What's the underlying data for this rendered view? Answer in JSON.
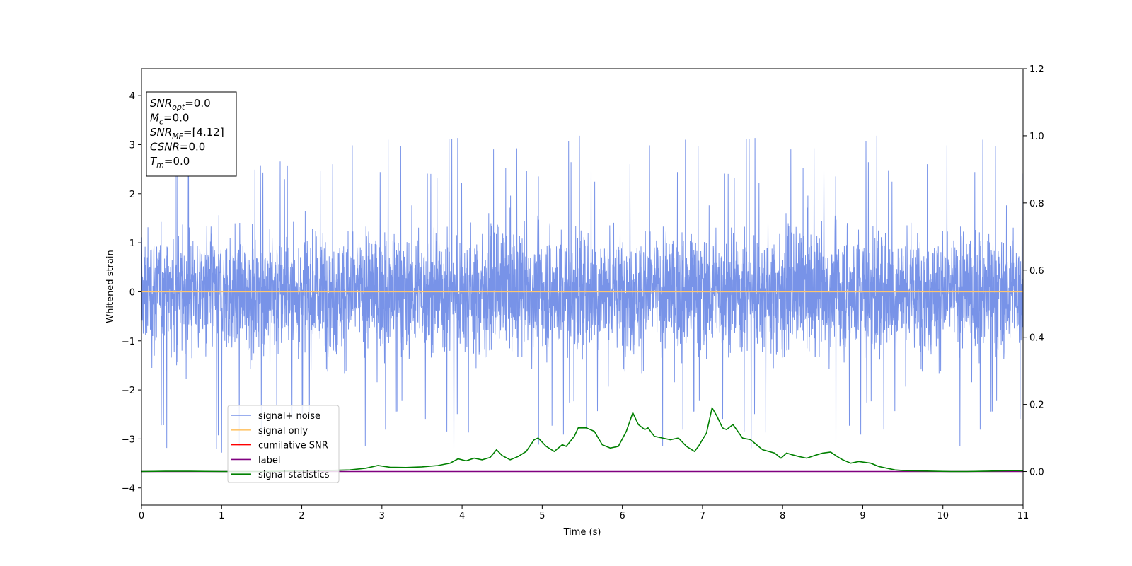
{
  "chart_data": {
    "type": "line",
    "xlabel": "Time (s)",
    "ylabel": "Whitened strain",
    "xlim": [
      0,
      11
    ],
    "ylim": [
      -4.35,
      4.55
    ],
    "y2lim": [
      -0.1,
      1.2
    ],
    "x_ticks": [
      0,
      1,
      2,
      3,
      4,
      5,
      6,
      7,
      8,
      9,
      10,
      11
    ],
    "y_ticks": [
      -4,
      -3,
      -2,
      -1,
      0,
      1,
      2,
      3,
      4
    ],
    "y2_ticks": [
      "0.0",
      "0.2",
      "0.4",
      "0.6",
      "0.8",
      "1.0",
      "1.2"
    ],
    "grid": false,
    "legend_position": "lower-left",
    "info_box": {
      "lines": [
        {
          "var": "SNR",
          "sub": "opt",
          "value": "=0.0"
        },
        {
          "var": "M",
          "sub": "c",
          "value": "=0.0"
        },
        {
          "var": "SNR",
          "sub": "MF",
          "value": "=[4.12]"
        },
        {
          "var": "CSNR",
          "sub": "",
          "value": "=0.0"
        },
        {
          "var": "T",
          "sub": "m",
          "value": "=0.0"
        }
      ]
    },
    "series": [
      {
        "name": "signal+ noise",
        "color": "#7893e8",
        "axis": "left",
        "kind": "noise",
        "description_values": {
          "t_start": 0,
          "t_end": 11,
          "typical_envelope": [
            -2.2,
            2.2
          ],
          "max_peak": 3.45,
          "min_trough": -3.95
        }
      },
      {
        "name": "signal only",
        "color": "#ffc66e",
        "axis": "left",
        "x": [
          0,
          11
        ],
        "y": [
          0,
          0
        ]
      },
      {
        "name": "cumilative SNR",
        "color": "#ff0000",
        "axis": "right",
        "x": [],
        "y": []
      },
      {
        "name": "label",
        "color": "#800080",
        "axis": "right",
        "x": [
          0,
          11
        ],
        "y": [
          0.0,
          0.0
        ]
      },
      {
        "name": "signal statistics",
        "color": "#008000",
        "axis": "right",
        "x": [
          0,
          0.3,
          0.6,
          1.0,
          1.5,
          2.0,
          2.3,
          2.6,
          2.8,
          2.95,
          3.1,
          3.3,
          3.5,
          3.7,
          3.85,
          3.95,
          4.05,
          4.15,
          4.25,
          4.35,
          4.43,
          4.5,
          4.6,
          4.7,
          4.8,
          4.9,
          4.95,
          5.05,
          5.15,
          5.25,
          5.3,
          5.4,
          5.45,
          5.55,
          5.65,
          5.75,
          5.85,
          5.95,
          6.05,
          6.13,
          6.2,
          6.28,
          6.32,
          6.4,
          6.5,
          6.6,
          6.7,
          6.8,
          6.9,
          6.95,
          7.05,
          7.12,
          7.18,
          7.25,
          7.3,
          7.38,
          7.5,
          7.6,
          7.75,
          7.9,
          7.98,
          8.05,
          8.12,
          8.2,
          8.3,
          8.4,
          8.5,
          8.6,
          8.68,
          8.75,
          8.85,
          8.95,
          9.1,
          9.2,
          9.4,
          9.5,
          9.7,
          9.9,
          10.1,
          10.3,
          10.5,
          10.7,
          10.9,
          11.0
        ],
        "y": [
          0.0,
          0.001,
          0.001,
          0.0,
          0.0,
          0.002,
          0.003,
          0.005,
          0.01,
          0.018,
          0.013,
          0.012,
          0.014,
          0.018,
          0.025,
          0.038,
          0.032,
          0.04,
          0.035,
          0.042,
          0.065,
          0.048,
          0.035,
          0.045,
          0.06,
          0.095,
          0.1,
          0.075,
          0.06,
          0.08,
          0.075,
          0.105,
          0.13,
          0.13,
          0.12,
          0.08,
          0.07,
          0.075,
          0.12,
          0.175,
          0.14,
          0.125,
          0.13,
          0.105,
          0.1,
          0.095,
          0.1,
          0.075,
          0.06,
          0.075,
          0.115,
          0.19,
          0.165,
          0.13,
          0.125,
          0.14,
          0.1,
          0.095,
          0.065,
          0.055,
          0.04,
          0.055,
          0.05,
          0.045,
          0.04,
          0.048,
          0.055,
          0.058,
          0.045,
          0.035,
          0.025,
          0.03,
          0.025,
          0.015,
          0.005,
          0.003,
          0.002,
          0.001,
          0.0,
          0.0,
          0.001,
          0.002,
          0.003,
          0.002
        ]
      }
    ]
  }
}
